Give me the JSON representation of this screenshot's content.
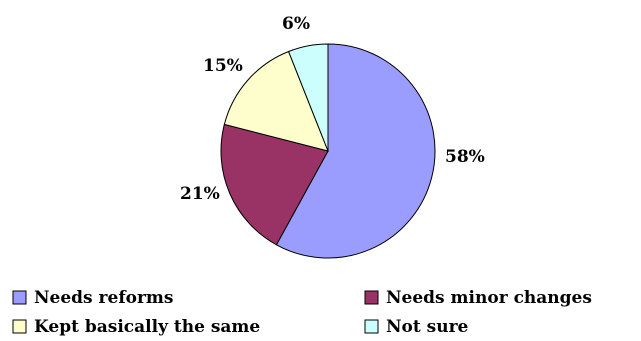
{
  "chart_data": {
    "type": "pie",
    "slices": [
      {
        "label": "Needs reforms",
        "value": 58,
        "display": "58%",
        "color": "#9b9dfe"
      },
      {
        "label": "Needs minor changes",
        "value": 21,
        "display": "21%",
        "color": "#993366"
      },
      {
        "label": "Kept basically the same",
        "value": 15,
        "display": "15%",
        "color": "#fefecc"
      },
      {
        "label": "Not sure",
        "value": 6,
        "display": "6%",
        "color": "#ccfefe"
      }
    ],
    "start": "12 o'clock",
    "direction": "clockwise",
    "border_color": "#000000",
    "legend_position": "bottom"
  }
}
